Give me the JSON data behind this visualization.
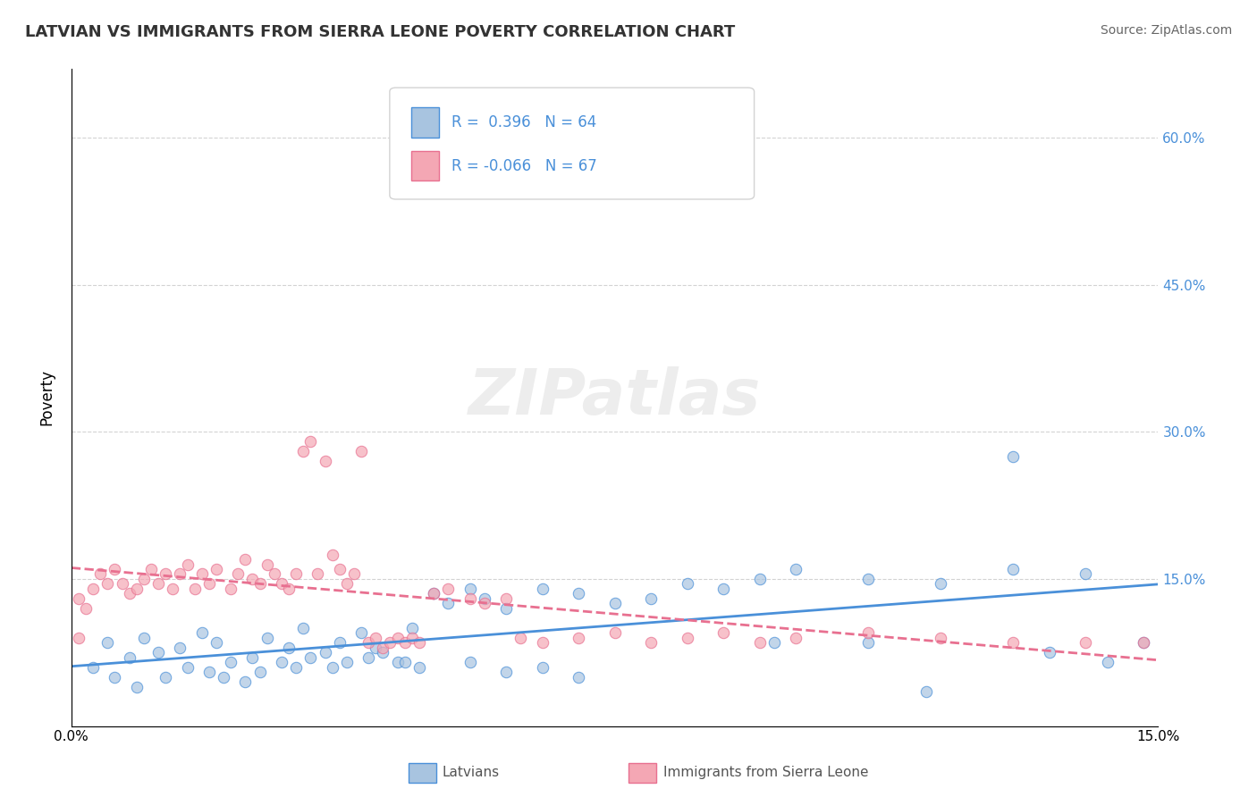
{
  "title": "LATVIAN VS IMMIGRANTS FROM SIERRA LEONE POVERTY CORRELATION CHART",
  "source_text": "Source: ZipAtlas.com",
  "ylabel": "Poverty",
  "xlim": [
    0.0,
    0.15
  ],
  "ylim": [
    0.0,
    0.67
  ],
  "yticks": [
    0.0,
    0.15,
    0.3,
    0.45,
    0.6
  ],
  "right_ytick_labels": [
    "15.0%",
    "30.0%",
    "45.0%",
    "60.0%"
  ],
  "right_yticks": [
    0.15,
    0.3,
    0.45,
    0.6
  ],
  "xtick_labels": [
    "0.0%",
    "15.0%"
  ],
  "xticks": [
    0.0,
    0.15
  ],
  "color_latvian": "#a8c4e0",
  "color_sierra": "#f4a7b4",
  "color_line_latvian": "#4a90d9",
  "color_line_sierra": "#e87090",
  "watermark": "ZIPatlas",
  "latvian_scatter": [
    [
      0.005,
      0.085
    ],
    [
      0.008,
      0.07
    ],
    [
      0.01,
      0.09
    ],
    [
      0.012,
      0.075
    ],
    [
      0.015,
      0.08
    ],
    [
      0.018,
      0.095
    ],
    [
      0.02,
      0.085
    ],
    [
      0.022,
      0.065
    ],
    [
      0.025,
      0.07
    ],
    [
      0.027,
      0.09
    ],
    [
      0.03,
      0.08
    ],
    [
      0.032,
      0.1
    ],
    [
      0.035,
      0.075
    ],
    [
      0.037,
      0.085
    ],
    [
      0.04,
      0.095
    ],
    [
      0.042,
      0.08
    ],
    [
      0.045,
      0.065
    ],
    [
      0.047,
      0.1
    ],
    [
      0.05,
      0.135
    ],
    [
      0.052,
      0.125
    ],
    [
      0.055,
      0.14
    ],
    [
      0.057,
      0.13
    ],
    [
      0.06,
      0.12
    ],
    [
      0.065,
      0.14
    ],
    [
      0.07,
      0.135
    ],
    [
      0.075,
      0.125
    ],
    [
      0.08,
      0.13
    ],
    [
      0.085,
      0.145
    ],
    [
      0.09,
      0.14
    ],
    [
      0.095,
      0.15
    ],
    [
      0.1,
      0.16
    ],
    [
      0.11,
      0.15
    ],
    [
      0.12,
      0.145
    ],
    [
      0.13,
      0.16
    ],
    [
      0.14,
      0.155
    ],
    [
      0.003,
      0.06
    ],
    [
      0.006,
      0.05
    ],
    [
      0.009,
      0.04
    ],
    [
      0.013,
      0.05
    ],
    [
      0.016,
      0.06
    ],
    [
      0.019,
      0.055
    ],
    [
      0.021,
      0.05
    ],
    [
      0.024,
      0.045
    ],
    [
      0.026,
      0.055
    ],
    [
      0.029,
      0.065
    ],
    [
      0.031,
      0.06
    ],
    [
      0.033,
      0.07
    ],
    [
      0.036,
      0.06
    ],
    [
      0.038,
      0.065
    ],
    [
      0.041,
      0.07
    ],
    [
      0.043,
      0.075
    ],
    [
      0.046,
      0.065
    ],
    [
      0.048,
      0.06
    ],
    [
      0.055,
      0.065
    ],
    [
      0.06,
      0.055
    ],
    [
      0.065,
      0.06
    ],
    [
      0.07,
      0.05
    ],
    [
      0.11,
      0.085
    ],
    [
      0.135,
      0.075
    ],
    [
      0.143,
      0.065
    ],
    [
      0.148,
      0.085
    ],
    [
      0.097,
      0.085
    ],
    [
      0.13,
      0.275
    ],
    [
      0.118,
      0.035
    ]
  ],
  "sierra_scatter": [
    [
      0.001,
      0.13
    ],
    [
      0.002,
      0.12
    ],
    [
      0.003,
      0.14
    ],
    [
      0.004,
      0.155
    ],
    [
      0.005,
      0.145
    ],
    [
      0.006,
      0.16
    ],
    [
      0.007,
      0.145
    ],
    [
      0.008,
      0.135
    ],
    [
      0.009,
      0.14
    ],
    [
      0.01,
      0.15
    ],
    [
      0.011,
      0.16
    ],
    [
      0.012,
      0.145
    ],
    [
      0.013,
      0.155
    ],
    [
      0.014,
      0.14
    ],
    [
      0.015,
      0.155
    ],
    [
      0.016,
      0.165
    ],
    [
      0.017,
      0.14
    ],
    [
      0.018,
      0.155
    ],
    [
      0.019,
      0.145
    ],
    [
      0.02,
      0.16
    ],
    [
      0.022,
      0.14
    ],
    [
      0.023,
      0.155
    ],
    [
      0.024,
      0.17
    ],
    [
      0.025,
      0.15
    ],
    [
      0.026,
      0.145
    ],
    [
      0.027,
      0.165
    ],
    [
      0.028,
      0.155
    ],
    [
      0.029,
      0.145
    ],
    [
      0.03,
      0.14
    ],
    [
      0.031,
      0.155
    ],
    [
      0.032,
      0.28
    ],
    [
      0.033,
      0.29
    ],
    [
      0.034,
      0.155
    ],
    [
      0.035,
      0.27
    ],
    [
      0.036,
      0.175
    ],
    [
      0.037,
      0.16
    ],
    [
      0.038,
      0.145
    ],
    [
      0.039,
      0.155
    ],
    [
      0.04,
      0.28
    ],
    [
      0.041,
      0.085
    ],
    [
      0.042,
      0.09
    ],
    [
      0.043,
      0.08
    ],
    [
      0.044,
      0.085
    ],
    [
      0.045,
      0.09
    ],
    [
      0.046,
      0.085
    ],
    [
      0.047,
      0.09
    ],
    [
      0.048,
      0.085
    ],
    [
      0.05,
      0.135
    ],
    [
      0.052,
      0.14
    ],
    [
      0.055,
      0.13
    ],
    [
      0.057,
      0.125
    ],
    [
      0.06,
      0.13
    ],
    [
      0.062,
      0.09
    ],
    [
      0.065,
      0.085
    ],
    [
      0.07,
      0.09
    ],
    [
      0.075,
      0.095
    ],
    [
      0.08,
      0.085
    ],
    [
      0.085,
      0.09
    ],
    [
      0.09,
      0.095
    ],
    [
      0.095,
      0.085
    ],
    [
      0.1,
      0.09
    ],
    [
      0.11,
      0.095
    ],
    [
      0.12,
      0.09
    ],
    [
      0.13,
      0.085
    ],
    [
      0.14,
      0.085
    ],
    [
      0.148,
      0.085
    ],
    [
      0.001,
      0.09
    ]
  ]
}
